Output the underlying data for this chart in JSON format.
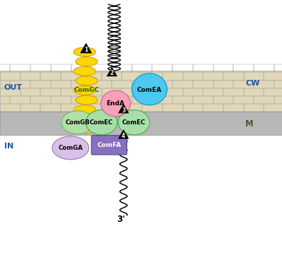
{
  "bg_color": "#ffffff",
  "comgc_color": "#FFD700",
  "comgc_edge": "#cc9900",
  "comea_color": "#4dc8f0",
  "comea_edge": "#0099cc",
  "enda_color": "#F8A0B8",
  "enda_edge": "#cc6688",
  "comec_color": "#a8dfa8",
  "comec_edge": "#44aa44",
  "comgb_color": "#b0e0a8",
  "comgb_edge": "#66bb66",
  "comga_color": "#D8C0E8",
  "comga_edge": "#9977aa",
  "comfa_color": "#8870C0",
  "comfa_edge": "#554488",
  "cw_fill": "#e0d8b8",
  "cw_edge": "#aaaaaa",
  "mem_fill": "#b8b8b8",
  "mem_edge": "#888888",
  "out_label": "OUT",
  "in_label": "IN",
  "cw_label": "CW",
  "m_label": "M",
  "prime3_label": "3'",
  "comgc_label": "ComGC",
  "comea_label": "ComEA",
  "enda_label": "EndA",
  "comec_left_label": "ComEC",
  "comec_right_label": "ComEC",
  "comgb_label": "ComGB",
  "comga_label": "ComGA",
  "comfa_label": "ComFA",
  "fig_width": 3.99,
  "fig_height": 3.61
}
